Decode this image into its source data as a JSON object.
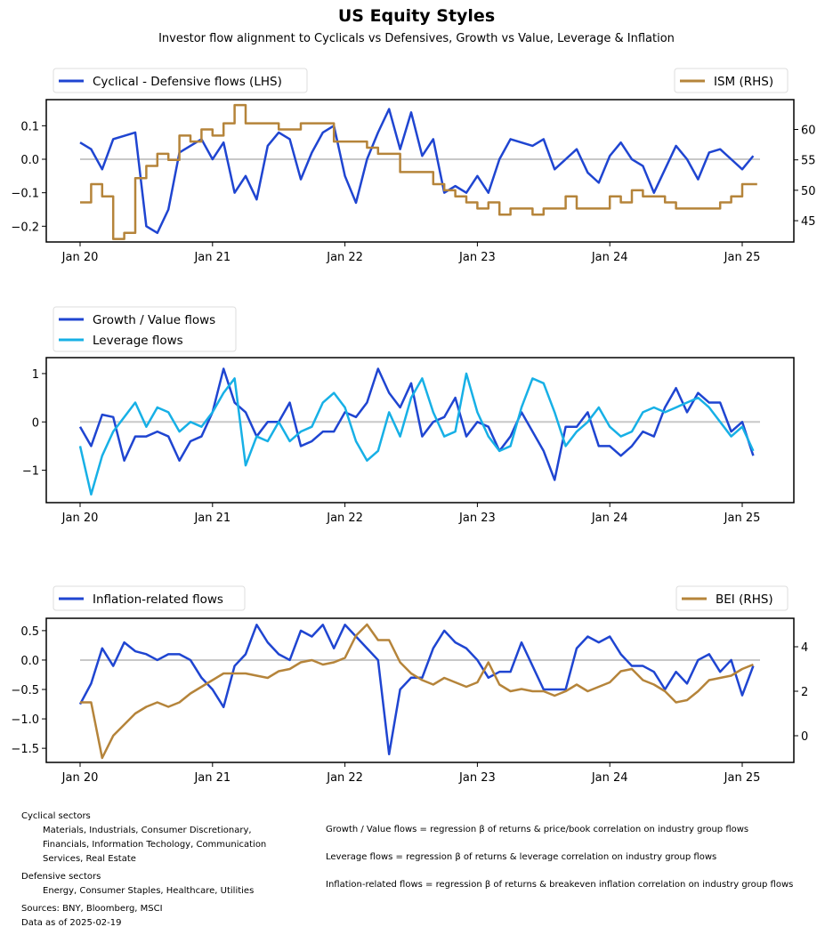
{
  "title": "US Equity Styles",
  "subtitle": "Investor flow alignment to Cyclicals vs Defensives, Growth vs Value, Leverage & Inflation",
  "colors": {
    "blue": "#1f45d1",
    "cyan": "#17b0e6",
    "gold": "#b5843a",
    "zero": "#c8c8c8"
  },
  "chart_data": [
    {
      "type": "line",
      "x_ticks": [
        "Jan 20",
        "Jan 21",
        "Jan 22",
        "Jan 23",
        "Jan 24",
        "Jan 25"
      ],
      "ylim": [
        -0.247,
        0.178
      ],
      "y_ticks": [
        "0.1",
        "0.0",
        "−0.1",
        "−0.2"
      ],
      "y_tick_values": [
        0.1,
        0,
        -0.1,
        -0.2
      ],
      "y2lim": [
        41.5,
        64.9
      ],
      "y2_ticks": [
        "60",
        "55",
        "50",
        "45"
      ],
      "y2_tick_values": [
        60,
        55,
        50,
        45
      ],
      "legend_left": "top-left",
      "legend_right": "top-right",
      "series": [
        {
          "name": "Cyclical - Defensive flows (LHS)",
          "axis": "left",
          "color": "#1f45d1",
          "values": [
            0.05,
            0.03,
            -0.03,
            0.06,
            0.07,
            0.08,
            -0.2,
            -0.22,
            -0.15,
            0.02,
            0.04,
            0.06,
            0.0,
            0.05,
            -0.1,
            -0.05,
            -0.12,
            0.04,
            0.08,
            0.06,
            -0.06,
            0.02,
            0.08,
            0.1,
            -0.05,
            -0.13,
            0.0,
            0.08,
            0.15,
            0.03,
            0.14,
            0.01,
            0.06,
            -0.1,
            -0.08,
            -0.1,
            -0.05,
            -0.1,
            0.0,
            0.06,
            0.05,
            0.04,
            0.06,
            -0.03,
            0.0,
            0.03,
            -0.04,
            -0.07,
            0.01,
            0.05,
            0.0,
            -0.02,
            -0.1,
            -0.03,
            0.04,
            0.0,
            -0.06,
            0.02,
            0.03,
            0.0,
            -0.03,
            0.01
          ]
        },
        {
          "name": "ISM (RHS)",
          "axis": "right",
          "step": true,
          "color": "#b5843a",
          "values": [
            48,
            51,
            49,
            42,
            43,
            52,
            54,
            56,
            55,
            59,
            58,
            60,
            59,
            61,
            64,
            61,
            61,
            61,
            60,
            60,
            61,
            61,
            61,
            58,
            58,
            58,
            57,
            56,
            56,
            53,
            53,
            53,
            51,
            50,
            49,
            48,
            47,
            48,
            46,
            47,
            47,
            46,
            47,
            47,
            49,
            47,
            47,
            47,
            49,
            48,
            50,
            49,
            49,
            48,
            47,
            47,
            47,
            47,
            48,
            49,
            51,
            51
          ]
        }
      ]
    },
    {
      "type": "line",
      "x_ticks": [
        "Jan 20",
        "Jan 21",
        "Jan 22",
        "Jan 23",
        "Jan 24",
        "Jan 25"
      ],
      "ylim": [
        -1.67,
        1.33
      ],
      "y_ticks": [
        "1",
        "0",
        "−1"
      ],
      "y_tick_values": [
        1,
        0,
        -1
      ],
      "legend": "top-left",
      "series": [
        {
          "name": "Growth / Value flows",
          "color": "#1f45d1",
          "values": [
            -0.1,
            -0.5,
            0.15,
            0.1,
            -0.8,
            -0.3,
            -0.3,
            -0.2,
            -0.3,
            -0.8,
            -0.4,
            -0.3,
            0.2,
            1.1,
            0.4,
            0.2,
            -0.3,
            0.0,
            0.0,
            0.4,
            -0.5,
            -0.4,
            -0.2,
            -0.2,
            0.2,
            0.1,
            0.4,
            1.1,
            0.6,
            0.3,
            0.8,
            -0.3,
            0.0,
            0.1,
            0.5,
            -0.3,
            0.0,
            -0.1,
            -0.6,
            -0.3,
            0.2,
            -0.2,
            -0.6,
            -1.2,
            -0.1,
            -0.1,
            0.2,
            -0.5,
            -0.5,
            -0.7,
            -0.5,
            -0.2,
            -0.3,
            0.3,
            0.7,
            0.2,
            0.6,
            0.4,
            0.4,
            -0.2,
            0.0,
            -0.7
          ]
        },
        {
          "name": "Leverage flows",
          "color": "#17b0e6",
          "values": [
            -0.5,
            -1.5,
            -0.7,
            -0.2,
            0.1,
            0.4,
            -0.1,
            0.3,
            0.2,
            -0.2,
            0.0,
            -0.1,
            0.2,
            0.6,
            0.9,
            -0.9,
            -0.3,
            -0.4,
            0.0,
            -0.4,
            -0.2,
            -0.1,
            0.4,
            0.6,
            0.3,
            -0.4,
            -0.8,
            -0.6,
            0.2,
            -0.3,
            0.5,
            0.9,
            0.2,
            -0.3,
            -0.2,
            1.0,
            0.2,
            -0.3,
            -0.6,
            -0.5,
            0.3,
            0.9,
            0.8,
            0.2,
            -0.5,
            -0.2,
            0.0,
            0.3,
            -0.1,
            -0.3,
            -0.2,
            0.2,
            0.3,
            0.2,
            0.3,
            0.4,
            0.5,
            0.3,
            0.0,
            -0.3,
            -0.1,
            -0.6
          ]
        }
      ]
    },
    {
      "type": "line",
      "x_ticks": [
        "Jan 20",
        "Jan 21",
        "Jan 22",
        "Jan 23",
        "Jan 24",
        "Jan 25"
      ],
      "ylim": [
        -1.74,
        0.71
      ],
      "y_ticks": [
        "0.5",
        "0.0",
        "−0.5",
        "−1.0",
        "−1.5"
      ],
      "y_tick_values": [
        0.5,
        0,
        -0.5,
        -1.0,
        -1.5
      ],
      "y2lim": [
        -1.2,
        5.28
      ],
      "y2_ticks": [
        "4",
        "2",
        "0"
      ],
      "y2_tick_values": [
        4,
        2,
        0
      ],
      "legend_left": "top-left",
      "legend_right": "top-right",
      "series": [
        {
          "name": "Inflation-related flows",
          "axis": "left",
          "color": "#1f45d1",
          "values": [
            -0.75,
            -0.4,
            0.2,
            -0.1,
            0.3,
            0.15,
            0.1,
            0.0,
            0.1,
            0.1,
            0.0,
            -0.3,
            -0.5,
            -0.8,
            -0.1,
            0.1,
            0.6,
            0.3,
            0.1,
            0.0,
            0.5,
            0.4,
            0.6,
            0.2,
            0.6,
            0.4,
            0.2,
            0.0,
            -1.6,
            -0.5,
            -0.3,
            -0.3,
            0.2,
            0.5,
            0.3,
            0.2,
            0.0,
            -0.3,
            -0.2,
            -0.2,
            0.3,
            -0.1,
            -0.5,
            -0.5,
            -0.5,
            0.2,
            0.4,
            0.3,
            0.4,
            0.1,
            -0.1,
            -0.1,
            -0.2,
            -0.5,
            -0.2,
            -0.4,
            0.0,
            0.1,
            -0.2,
            0.0,
            -0.6,
            -0.1
          ]
        },
        {
          "name": "BEI (RHS)",
          "axis": "right",
          "color": "#b5843a",
          "values": [
            1.5,
            1.5,
            -1.0,
            0.0,
            0.5,
            1.0,
            1.3,
            1.5,
            1.3,
            1.5,
            1.9,
            2.2,
            2.5,
            2.8,
            2.8,
            2.8,
            2.7,
            2.6,
            2.9,
            3.0,
            3.3,
            3.4,
            3.2,
            3.3,
            3.5,
            4.5,
            5.0,
            4.3,
            4.3,
            3.3,
            2.8,
            2.5,
            2.3,
            2.6,
            2.4,
            2.2,
            2.4,
            3.3,
            2.3,
            2.0,
            2.1,
            2.0,
            2.0,
            1.8,
            2.0,
            2.3,
            2.0,
            2.2,
            2.4,
            2.9,
            3.0,
            2.5,
            2.3,
            2.0,
            1.5,
            1.6,
            2.0,
            2.5,
            2.6,
            2.7,
            3.0,
            3.2
          ]
        }
      ]
    }
  ],
  "notes": {
    "cyclical_title": "Cyclical sectors",
    "cyclical_lines": [
      "Materials, Industrials, Consumer Discretionary,",
      "Financials, Information Techology, Communication",
      "Services, Real Estate"
    ],
    "defensive_title": "Defensive sectors",
    "defensive_line": "Energy, Consumer Staples, Healthcare, Utilities",
    "sources": "Sources:  BNY, Bloomberg, MSCI",
    "asof": "Data as of 2025-02-19",
    "defs": [
      "Growth / Value flows = regression β of returns & price/book correlation on industry group flows",
      "Leverage flows = regression β of returns & leverage correlation on industry group flows",
      "Inflation-related flows = regression β of returns & breakeven inflation correlation on industry group flows"
    ]
  }
}
